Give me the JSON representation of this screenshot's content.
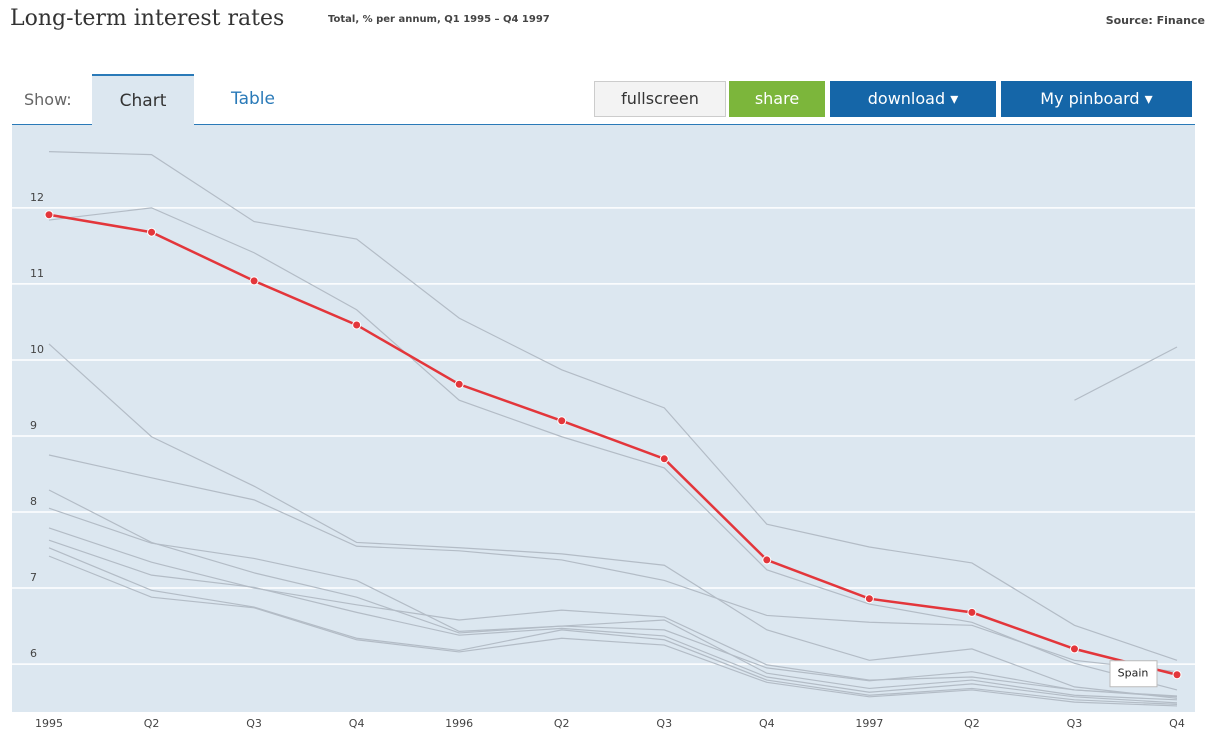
{
  "header": {
    "title": "Long-term interest rates",
    "subtitle": "Total, % per annum, Q1 1995 – Q4 1997",
    "source": "Source: Finance"
  },
  "toolbar": {
    "show": "Show:",
    "tabs": [
      "Chart",
      "Table"
    ],
    "buttons": [
      "fullscreen",
      "share",
      "download ▾",
      "My pinboard ▾"
    ]
  },
  "chart_data": {
    "type": "line",
    "categories": [
      "1995",
      "Q2",
      "Q3",
      "Q4",
      "1996",
      "Q2",
      "Q3",
      "Q4",
      "1997",
      "Q2",
      "Q3",
      "Q4"
    ],
    "ylim": [
      5.37,
      13.09
    ],
    "yticks": [
      6,
      7,
      8,
      9,
      10,
      11,
      12
    ],
    "grid": true,
    "series": [
      {
        "color": "#b3bcc6",
        "values": [
          12.74,
          12.7,
          11.82,
          11.59,
          10.55,
          9.87,
          9.37,
          7.84,
          7.54,
          7.33,
          6.51,
          6.05
        ]
      },
      {
        "color": "#b3bcc6",
        "values": [
          11.84,
          12.0,
          11.41,
          10.66,
          9.47,
          8.99,
          8.58,
          7.24,
          6.79,
          6.55,
          6.01,
          5.66
        ]
      },
      {
        "color": "#b3bcc6",
        "values": [
          10.21,
          8.99,
          8.34,
          7.6,
          7.53,
          7.45,
          7.3,
          6.45,
          6.05,
          6.2,
          5.7,
          5.55
        ]
      },
      {
        "color": "#b3bcc6",
        "values": [
          8.75,
          8.45,
          8.16,
          7.55,
          7.49,
          7.37,
          7.1,
          6.64,
          6.55,
          6.51,
          6.05,
          5.9
        ]
      },
      {
        "color": "#b3bcc6",
        "values": [
          8.29,
          7.6,
          7.2,
          6.88,
          6.41,
          6.5,
          6.45,
          5.95,
          5.78,
          5.9,
          5.66,
          5.57
        ]
      },
      {
        "color": "#b3bcc6",
        "values": [
          8.05,
          7.59,
          7.39,
          7.1,
          6.43,
          6.5,
          6.58,
          5.88,
          5.68,
          5.79,
          5.59,
          5.53
        ]
      },
      {
        "color": "#b3bcc6",
        "values": [
          7.79,
          7.34,
          7.0,
          6.78,
          6.58,
          6.71,
          6.62,
          5.99,
          5.79,
          5.83,
          5.66,
          5.58
        ]
      },
      {
        "color": "#b3bcc6",
        "values": [
          7.63,
          7.17,
          7.01,
          6.68,
          6.38,
          6.47,
          6.37,
          5.83,
          5.63,
          5.74,
          5.57,
          5.49
        ]
      },
      {
        "color": "#b3bcc6",
        "values": [
          7.53,
          6.97,
          6.75,
          6.34,
          6.18,
          6.45,
          6.32,
          5.79,
          5.59,
          5.68,
          5.53,
          5.47
        ]
      },
      {
        "color": "#b3bcc6",
        "values": [
          7.42,
          6.88,
          6.74,
          6.32,
          6.16,
          6.34,
          6.25,
          5.76,
          5.57,
          5.66,
          5.5,
          5.45
        ]
      },
      {
        "color": "#b3bcc6",
        "values": [
          null,
          null,
          null,
          null,
          null,
          null,
          null,
          null,
          null,
          null,
          9.47,
          10.17
        ]
      },
      {
        "name": "Spain",
        "color": "#e3363b",
        "markers": true,
        "values": [
          11.91,
          11.68,
          11.04,
          10.46,
          9.68,
          9.2,
          8.7,
          7.37,
          6.86,
          6.68,
          6.2,
          5.86
        ]
      }
    ]
  }
}
